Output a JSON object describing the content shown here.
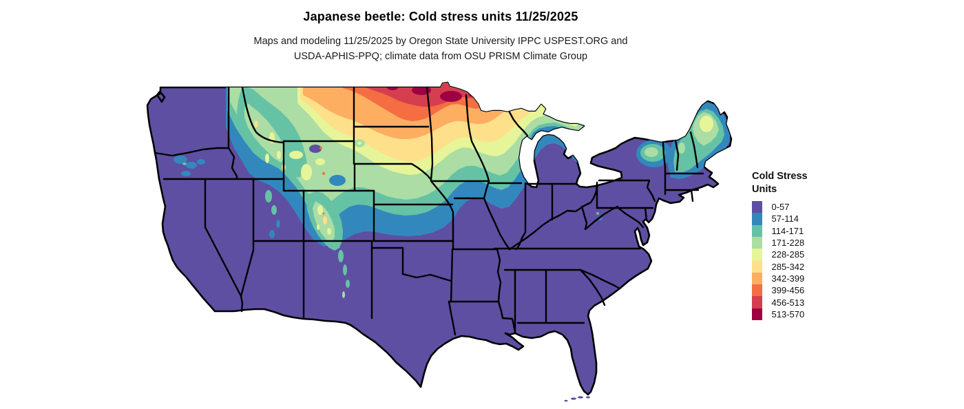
{
  "header": {
    "title": "Japanese beetle: Cold stress units 11/25/2025",
    "subtitle_line1": "Maps and modeling 11/25/2025 by Oregon State University IPPC USPEST.ORG and",
    "subtitle_line2": "USDA-APHIS-PPQ; climate data from OSU PRISM Climate Group"
  },
  "legend": {
    "title_line1": "Cold Stress",
    "title_line2": "Units",
    "items": [
      {
        "label": "0-57",
        "color": "#5e4fa2"
      },
      {
        "label": "57-114",
        "color": "#3288bd"
      },
      {
        "label": "114-171",
        "color": "#66c2a5"
      },
      {
        "label": "171-228",
        "color": "#abdda4"
      },
      {
        "label": "228-285",
        "color": "#e6f598"
      },
      {
        "label": "285-342",
        "color": "#fee08b"
      },
      {
        "label": "342-399",
        "color": "#fdae61"
      },
      {
        "label": "399-456",
        "color": "#f46d43"
      },
      {
        "label": "456-513",
        "color": "#d53e4f"
      },
      {
        "label": "513-570",
        "color": "#9e0142"
      }
    ]
  },
  "map": {
    "description": "Contiguous United States choropleth raster of Japanese beetle cold stress units; coolest values (purple) across the South and West, increasing northward to maximum values (orange/red) in North Dakota and northern Minnesota; elevated values along Rocky Mountains (Idaho, Wyoming, Colorado), upper Midwest, Adirondacks, northern New England",
    "border_color": "#000000",
    "background_color": "#ffffff",
    "band_colors": {
      "purple": "#5e4fa2",
      "blue": "#3288bd",
      "teal": "#66c2a5",
      "green": "#abdda4",
      "palegreen": "#e6f598",
      "yellow": "#fee08b",
      "orange": "#fdae61",
      "orangered": "#f46d43",
      "red": "#d53e4f",
      "darkred": "#9e0142"
    }
  }
}
